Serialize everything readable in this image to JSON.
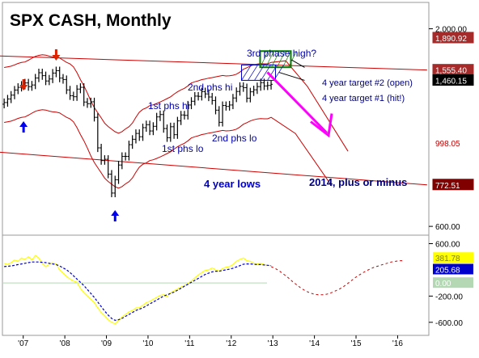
{
  "chart_data": {
    "type": "line",
    "title": "SPX CASH, Monthly",
    "x_ticks": [
      "'07",
      "'08",
      "'09",
      "'10",
      "'11",
      "'12",
      "'13",
      "'14",
      "'15",
      "'16"
    ],
    "price_axis": {
      "scale": "log",
      "ticks": [
        "2,000.00",
        "600.00"
      ],
      "price_labels": [
        {
          "text": "1,890.92",
          "bg": "#a52a2a",
          "fg": "#ffffff"
        },
        {
          "text": "1,555.40",
          "bg": "#a52a2a",
          "fg": "#ffffff"
        },
        {
          "text": "1,460.15",
          "bg": "#000000",
          "fg": "#ffffff"
        },
        {
          "text": "998.05",
          "bg": "#ffffff",
          "fg": "#c00000"
        },
        {
          "text": "772.51",
          "bg": "#800000",
          "fg": "#ffffff"
        }
      ]
    },
    "price_series": {
      "name": "SPX monthly bars",
      "months": [
        "2006-07",
        "2006-08",
        "2006-09",
        "2006-10",
        "2006-11",
        "2006-12",
        "2007-01",
        "2007-02",
        "2007-03",
        "2007-04",
        "2007-05",
        "2007-06",
        "2007-07",
        "2007-08",
        "2007-09",
        "2007-10",
        "2007-11",
        "2007-12",
        "2008-01",
        "2008-02",
        "2008-03",
        "2008-04",
        "2008-05",
        "2008-06",
        "2008-07",
        "2008-08",
        "2008-09",
        "2008-10",
        "2008-11",
        "2008-12",
        "2009-01",
        "2009-02",
        "2009-03",
        "2009-04",
        "2009-05",
        "2009-06",
        "2009-07",
        "2009-08",
        "2009-09",
        "2009-10",
        "2009-11",
        "2009-12",
        "2010-01",
        "2010-02",
        "2010-03",
        "2010-04",
        "2010-05",
        "2010-06",
        "2010-07",
        "2010-08",
        "2010-09",
        "2010-10",
        "2010-11",
        "2010-12",
        "2011-01",
        "2011-02",
        "2011-03",
        "2011-04",
        "2011-05",
        "2011-06",
        "2011-07",
        "2011-08",
        "2011-09",
        "2011-10",
        "2011-11",
        "2011-12",
        "2012-01",
        "2012-02",
        "2012-03",
        "2012-04",
        "2012-05",
        "2012-06",
        "2012-07",
        "2012-08",
        "2012-09",
        "2012-10",
        "2012-11",
        "2012-12"
      ],
      "close": [
        1276,
        1304,
        1335,
        1377,
        1400,
        1418,
        1438,
        1406,
        1420,
        1482,
        1530,
        1503,
        1455,
        1473,
        1527,
        1549,
        1481,
        1468,
        1378,
        1330,
        1322,
        1385,
        1400,
        1280,
        1267,
        1282,
        1166,
        968,
        896,
        903,
        825,
        735,
        797,
        872,
        919,
        919,
        987,
        1020,
        1057,
        1036,
        1095,
        1115,
        1073,
        1104,
        1169,
        1186,
        1089,
        1030,
        1101,
        1049,
        1141,
        1183,
        1180,
        1257,
        1286,
        1327,
        1325,
        1363,
        1345,
        1320,
        1292,
        1218,
        1131,
        1253,
        1246,
        1257,
        1312,
        1365,
        1408,
        1397,
        1310,
        1362,
        1379,
        1406,
        1440,
        1412,
        1416,
        1426
      ]
    },
    "bands": [
      {
        "name": "upper envelope",
        "color": "#cc0000"
      },
      {
        "name": "lower envelope",
        "color": "#cc0000"
      }
    ],
    "trendlines": [
      {
        "name": "upper trendline",
        "from": [
          "2006-01",
          1700
        ],
        "to": [
          "2016-09",
          1555.4
        ]
      },
      {
        "name": "lower trendline",
        "from": [
          "2006-01",
          950
        ],
        "to": [
          "2016-09",
          772.51
        ]
      }
    ],
    "oscillator": {
      "scale": "linear",
      "ticks": [
        "600.00",
        "-200.00",
        "-600.00"
      ],
      "labels": [
        {
          "text": "381.78",
          "bg": "#ffff00",
          "fg": "#808000"
        },
        {
          "text": "205.68",
          "bg": "#0000cc",
          "fg": "#ffffff"
        },
        {
          "text": "0.00",
          "bg": "#b4d8b4",
          "fg": "#ffffff"
        }
      ],
      "series": [
        {
          "name": "oscillator",
          "color": "#ffff00",
          "values": [
            300,
            280,
            310,
            350,
            330,
            380,
            360,
            400,
            350,
            420,
            380,
            300,
            250,
            280,
            310,
            290,
            200,
            150,
            100,
            60,
            30,
            10,
            -80,
            -150,
            -200,
            -250,
            -300,
            -380,
            -450,
            -500,
            -560,
            -600,
            -620,
            -570,
            -520,
            -480,
            -440,
            -420,
            -380,
            -380,
            -340,
            -300,
            -280,
            -250,
            -220,
            -190,
            -180,
            -210,
            -150,
            -120,
            -90,
            -60,
            -40,
            -10,
            30,
            80,
            120,
            160,
            190,
            200,
            230,
            200,
            180,
            220,
            240,
            250,
            280,
            330,
            360,
            380,
            340,
            330,
            300,
            290,
            300,
            280,
            270,
            260
          ]
        },
        {
          "name": "signal",
          "color": "#0000cc",
          "values": [
            250,
            255,
            260,
            270,
            280,
            290,
            300,
            310,
            320,
            320,
            320,
            315,
            310,
            300,
            290,
            280,
            260,
            230,
            200,
            160,
            110,
            60,
            10,
            -40,
            -100,
            -160,
            -220,
            -290,
            -360,
            -430,
            -490,
            -540,
            -570,
            -560,
            -540,
            -510,
            -480,
            -450,
            -420,
            -400,
            -380,
            -350,
            -320,
            -290,
            -260,
            -230,
            -200,
            -180,
            -160,
            -140,
            -110,
            -80,
            -50,
            -20,
            10,
            40,
            70,
            100,
            130,
            150,
            170,
            180,
            180,
            190,
            200,
            210,
            225,
            245,
            265,
            285,
            290,
            290,
            285,
            280,
            280,
            275,
            270,
            265
          ]
        },
        {
          "name": "projection",
          "color": "#cc0000",
          "values": [
            250,
            220,
            180,
            130,
            80,
            20,
            -30,
            -80,
            -120,
            -150,
            -170,
            -180,
            -180,
            -170,
            -150,
            -120,
            -90,
            -50,
            0,
            50,
            100,
            140,
            180,
            210,
            240,
            260,
            280,
            300,
            320,
            330,
            340,
            340
          ]
        }
      ]
    },
    "projection_arrow": {
      "color": "#ff00ff"
    },
    "annotations": [
      "3rd phase high?",
      "2nd phs hi",
      "1st phs hi",
      "1st phs lo",
      "2nd phs lo",
      "4 year lows",
      "2014, plus or minus",
      "4 year target #2 (open)",
      "4 year target #1 (hit!)"
    ],
    "grid": false
  }
}
